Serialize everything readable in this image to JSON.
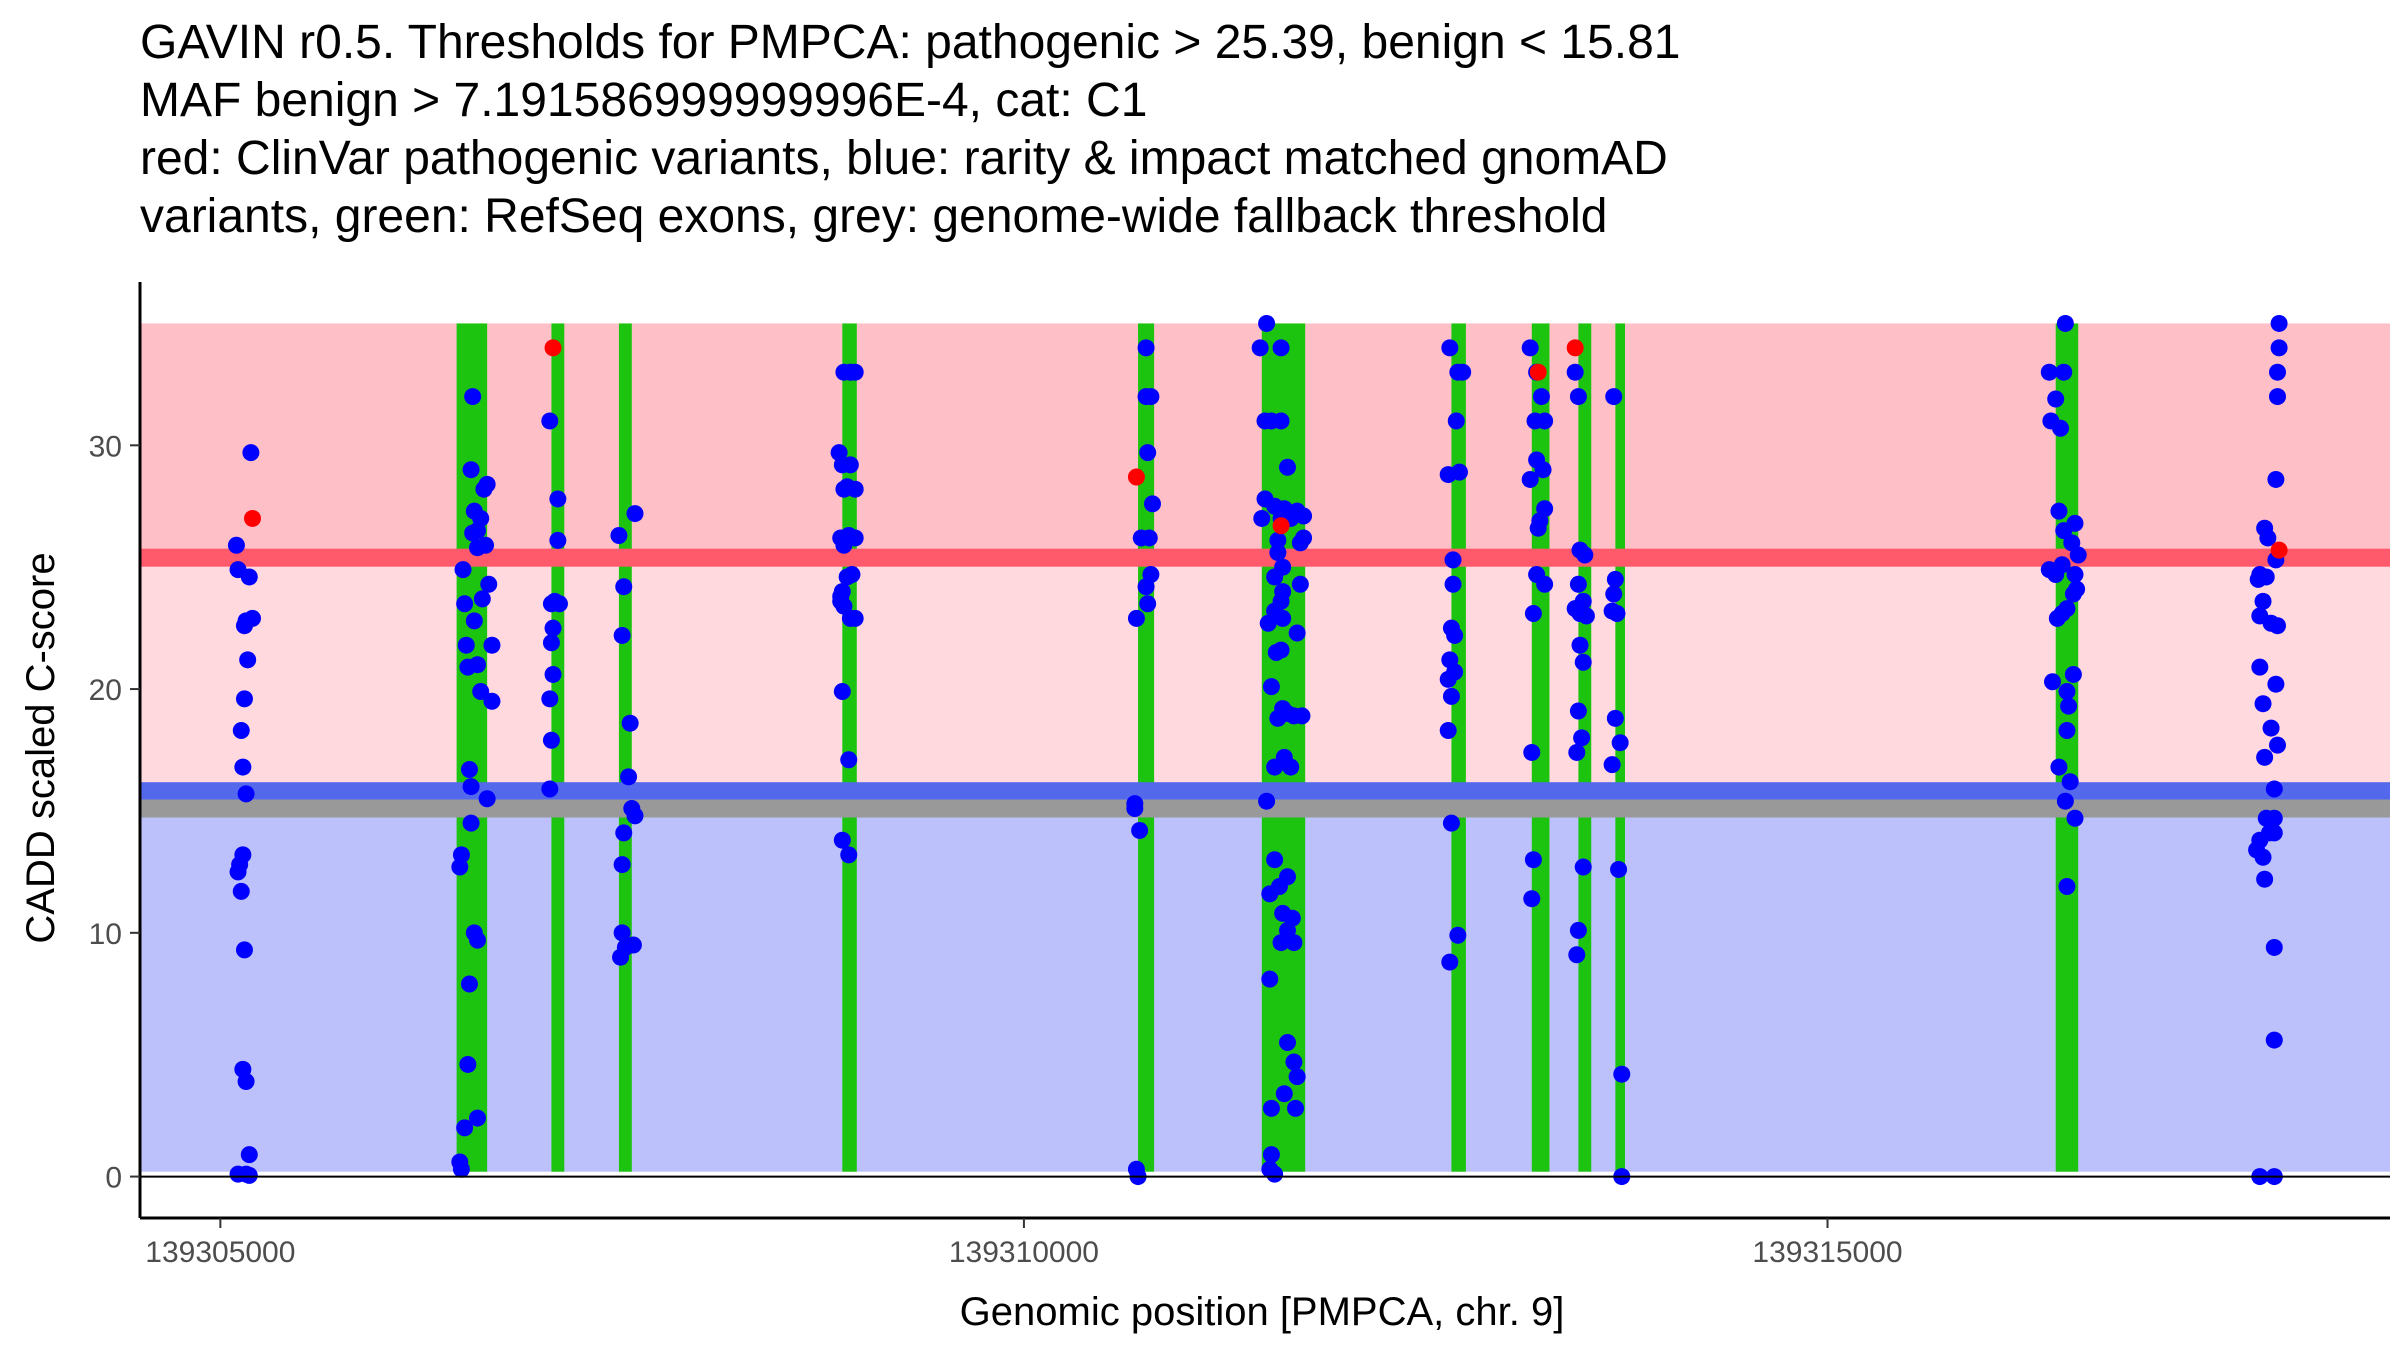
{
  "title_lines": [
    "GAVIN r0.5. Thresholds for PMPCA: pathogenic > 25.39, benign < 15.81",
    "MAF benign > 7.191586999999996E-4, cat: C1",
    "red: ClinVar pathogenic variants, blue: rarity & impact matched gnomAD",
    "variants, green: RefSeq exons, grey: genome-wide fallback threshold"
  ],
  "chart_data": {
    "type": "scatter",
    "title": "GAVIN r0.5. Thresholds for PMPCA: pathogenic > 25.39, benign < 15.81",
    "xlabel": "Genomic position [PMPCA, chr. 9]",
    "ylabel": "CADD scaled C-score",
    "xlim": [
      139304500,
      139318500
    ],
    "ylim": [
      -1.7,
      36.7
    ],
    "x_ticks": [
      139305000,
      139310000,
      139315000
    ],
    "x_tick_labels": [
      "139305000",
      "139310000",
      "139315000"
    ],
    "y_ticks": [
      0,
      10,
      20,
      30
    ],
    "y_tick_labels": [
      "0",
      "10",
      "20",
      "30"
    ],
    "grid": false,
    "colors": {
      "pathogenic_zone": "#ffbfc7",
      "uncertain_zone": "#ffd9de",
      "benign_zone": "#bcc1fb",
      "pathogenic_line": "#ff5a6b",
      "benign_line": "#5468ec",
      "fallback_line": "#999999",
      "exon": "#1cc40f",
      "gnomad_point": "#0000ff",
      "clinvar_point": "#ff0000"
    },
    "thresholds": {
      "pathogenic": 25.39,
      "benign": 15.81,
      "fallback": 15.1,
      "zone_top": 35,
      "zone_bottom": 0.2
    },
    "exons": [
      [
        139306470,
        139306660
      ],
      [
        139307060,
        139307140
      ],
      [
        139307480,
        139307560
      ],
      [
        139308870,
        139308960
      ],
      [
        139310710,
        139310810
      ],
      [
        139311480,
        139311750
      ],
      [
        139312660,
        139312750
      ],
      [
        139313160,
        139313270
      ],
      [
        139313450,
        139313530
      ],
      [
        139313680,
        139313740
      ],
      [
        139316420,
        139316560
      ]
    ],
    "gnomad_variants": [
      [
        139305100,
        25.9
      ],
      [
        139305110,
        24.9
      ],
      [
        139305150,
        22.6
      ],
      [
        139305160,
        22.8
      ],
      [
        139305170,
        21.2
      ],
      [
        139305150,
        19.6
      ],
      [
        139305130,
        18.3
      ],
      [
        139305140,
        16.8
      ],
      [
        139305160,
        15.7
      ],
      [
        139305140,
        13.2
      ],
      [
        139305120,
        12.8
      ],
      [
        139305110,
        12.5
      ],
      [
        139305130,
        11.7
      ],
      [
        139305150,
        9.3
      ],
      [
        139305140,
        4.4
      ],
      [
        139305160,
        3.9
      ],
      [
        139305180,
        0.9
      ],
      [
        139305110,
        0.1
      ],
      [
        139305160,
        0.1
      ],
      [
        139305180,
        24.6
      ],
      [
        139305190,
        29.7
      ],
      [
        139305200,
        22.9
      ],
      [
        139305180,
        0.05
      ],
      [
        139306510,
        24.9
      ],
      [
        139306520,
        23.5
      ],
      [
        139306530,
        21.8
      ],
      [
        139306540,
        20.9
      ],
      [
        139306550,
        16.7
      ],
      [
        139306560,
        16.0
      ],
      [
        139306500,
        13.2
      ],
      [
        139306490,
        12.7
      ],
      [
        139306560,
        14.5
      ],
      [
        139306580,
        10.0
      ],
      [
        139306600,
        9.7
      ],
      [
        139306550,
        7.9
      ],
      [
        139306540,
        4.6
      ],
      [
        139306520,
        2.0
      ],
      [
        139306600,
        2.4
      ],
      [
        139306490,
        0.6
      ],
      [
        139306500,
        0.3
      ],
      [
        139306570,
        32.0
      ],
      [
        139306560,
        29.0
      ],
      [
        139306580,
        27.3
      ],
      [
        139306600,
        26.5
      ],
      [
        139306620,
        27.0
      ],
      [
        139306570,
        26.4
      ],
      [
        139306640,
        28.2
      ],
      [
        139306660,
        28.4
      ],
      [
        139306600,
        25.8
      ],
      [
        139306650,
        25.9
      ],
      [
        139306630,
        23.7
      ],
      [
        139306580,
        22.8
      ],
      [
        139306600,
        21.0
      ],
      [
        139306620,
        19.9
      ],
      [
        139306670,
        24.3
      ],
      [
        139306690,
        21.8
      ],
      [
        139306690,
        19.5
      ],
      [
        139306660,
        15.5
      ],
      [
        139307050,
        31.0
      ],
      [
        139307060,
        23.5
      ],
      [
        139307080,
        23.6
      ],
      [
        139307110,
        23.5
      ],
      [
        139307070,
        22.5
      ],
      [
        139307060,
        21.9
      ],
      [
        139307050,
        19.6
      ],
      [
        139307070,
        20.6
      ],
      [
        139307060,
        17.9
      ],
      [
        139307050,
        15.9
      ],
      [
        139307100,
        27.8
      ],
      [
        139307100,
        26.1
      ],
      [
        139307480,
        26.3
      ],
      [
        139307510,
        24.2
      ],
      [
        139307500,
        22.2
      ],
      [
        139307510,
        14.1
      ],
      [
        139307500,
        12.8
      ],
      [
        139307500,
        10.0
      ],
      [
        139307490,
        9.0
      ],
      [
        139307520,
        9.4
      ],
      [
        139307540,
        16.4
      ],
      [
        139307550,
        18.6
      ],
      [
        139307560,
        15.1
      ],
      [
        139307580,
        14.8
      ],
      [
        139307570,
        9.5
      ],
      [
        139307580,
        27.2
      ],
      [
        139308850,
        29.7
      ],
      [
        139308870,
        29.2
      ],
      [
        139308880,
        28.2
      ],
      [
        139308900,
        28.3
      ],
      [
        139308950,
        28.2
      ],
      [
        139308920,
        29.2
      ],
      [
        139308860,
        26.2
      ],
      [
        139308880,
        25.9
      ],
      [
        139308910,
        26.3
      ],
      [
        139308950,
        26.2
      ],
      [
        139308870,
        24.0
      ],
      [
        139308900,
        24.6
      ],
      [
        139308930,
        24.7
      ],
      [
        139308880,
        23.4
      ],
      [
        139308920,
        22.9
      ],
      [
        139308860,
        23.8
      ],
      [
        139308950,
        22.9
      ],
      [
        139308870,
        19.9
      ],
      [
        139308910,
        17.1
      ],
      [
        139308870,
        13.8
      ],
      [
        139308910,
        13.2
      ],
      [
        139308880,
        33.0
      ],
      [
        139308920,
        33.0
      ],
      [
        139308950,
        33.0
      ],
      [
        139308860,
        23.6
      ],
      [
        139310690,
        15.3
      ],
      [
        139310690,
        15.1
      ],
      [
        139310720,
        14.2
      ],
      [
        139310700,
        22.9
      ],
      [
        139310730,
        26.2
      ],
      [
        139310780,
        26.2
      ],
      [
        139310760,
        24.2
      ],
      [
        139310790,
        24.7
      ],
      [
        139310770,
        23.5
      ],
      [
        139310800,
        27.6
      ],
      [
        139310770,
        29.7
      ],
      [
        139310760,
        32.0
      ],
      [
        139310790,
        32.0
      ],
      [
        139310760,
        34.0
      ],
      [
        139310700,
        0.3
      ],
      [
        139310710,
        0.0
      ],
      [
        139311470,
        34.0
      ],
      [
        139311510,
        35.0
      ],
      [
        139311500,
        31.0
      ],
      [
        139311540,
        31.0
      ],
      [
        139311600,
        31.0
      ],
      [
        139311500,
        27.8
      ],
      [
        139311560,
        27.5
      ],
      [
        139311600,
        27.0
      ],
      [
        139311620,
        27.4
      ],
      [
        139311660,
        27.0
      ],
      [
        139311700,
        27.3
      ],
      [
        139311740,
        27.1
      ],
      [
        139311480,
        27.0
      ],
      [
        139311580,
        26.1
      ],
      [
        139311720,
        26.0
      ],
      [
        139311740,
        26.2
      ],
      [
        139311580,
        25.6
      ],
      [
        139311610,
        25.0
      ],
      [
        139311560,
        24.6
      ],
      [
        139311610,
        24.0
      ],
      [
        139311720,
        24.3
      ],
      [
        139311560,
        23.2
      ],
      [
        139311600,
        23.6
      ],
      [
        139311610,
        22.9
      ],
      [
        139311520,
        22.7
      ],
      [
        139311700,
        22.3
      ],
      [
        139311640,
        29.1
      ],
      [
        139311570,
        21.5
      ],
      [
        139311600,
        21.6
      ],
      [
        139311540,
        20.1
      ],
      [
        139311610,
        19.2
      ],
      [
        139311640,
        19.0
      ],
      [
        139311680,
        18.9
      ],
      [
        139311730,
        18.9
      ],
      [
        139311580,
        18.8
      ],
      [
        139311620,
        17.2
      ],
      [
        139311560,
        16.8
      ],
      [
        139311660,
        16.8
      ],
      [
        139311510,
        15.4
      ],
      [
        139311560,
        13.0
      ],
      [
        139311590,
        11.9
      ],
      [
        139311530,
        11.6
      ],
      [
        139311640,
        12.3
      ],
      [
        139311610,
        10.8
      ],
      [
        139311640,
        10.1
      ],
      [
        139311670,
        10.6
      ],
      [
        139311600,
        9.6
      ],
      [
        139311680,
        9.6
      ],
      [
        139311530,
        8.1
      ],
      [
        139311640,
        5.5
      ],
      [
        139311680,
        4.7
      ],
      [
        139311700,
        4.1
      ],
      [
        139311620,
        3.4
      ],
      [
        139311540,
        2.8
      ],
      [
        139311690,
        2.8
      ],
      [
        139311540,
        0.9
      ],
      [
        139311560,
        0.1
      ],
      [
        139311530,
        0.3
      ],
      [
        139311600,
        34.0
      ],
      [
        139312650,
        34.0
      ],
      [
        139312700,
        33.0
      ],
      [
        139312730,
        33.0
      ],
      [
        139312690,
        31.0
      ],
      [
        139312640,
        28.8
      ],
      [
        139312710,
        28.9
      ],
      [
        139312670,
        25.3
      ],
      [
        139312670,
        24.3
      ],
      [
        139312660,
        22.5
      ],
      [
        139312680,
        22.2
      ],
      [
        139312650,
        21.2
      ],
      [
        139312640,
        20.4
      ],
      [
        139312680,
        20.7
      ],
      [
        139312660,
        19.7
      ],
      [
        139312640,
        18.3
      ],
      [
        139312660,
        14.5
      ],
      [
        139312700,
        9.9
      ],
      [
        139312650,
        8.8
      ],
      [
        139313150,
        34.0
      ],
      [
        139313190,
        33.0
      ],
      [
        139313220,
        32.0
      ],
      [
        139313180,
        31.0
      ],
      [
        139313240,
        31.0
      ],
      [
        139313150,
        28.6
      ],
      [
        139313190,
        29.4
      ],
      [
        139313230,
        29.0
      ],
      [
        139313240,
        27.4
      ],
      [
        139313210,
        26.9
      ],
      [
        139313200,
        26.6
      ],
      [
        139313190,
        24.7
      ],
      [
        139313240,
        24.3
      ],
      [
        139313170,
        23.1
      ],
      [
        139313160,
        17.4
      ],
      [
        139313170,
        13.0
      ],
      [
        139313160,
        11.4
      ],
      [
        139313430,
        33.0
      ],
      [
        139313450,
        32.0
      ],
      [
        139313460,
        25.7
      ],
      [
        139313490,
        25.5
      ],
      [
        139313450,
        24.3
      ],
      [
        139313430,
        23.3
      ],
      [
        139313480,
        23.6
      ],
      [
        139313460,
        23.1
      ],
      [
        139313500,
        23.0
      ],
      [
        139313460,
        21.8
      ],
      [
        139313480,
        21.1
      ],
      [
        139313450,
        19.1
      ],
      [
        139313470,
        18.0
      ],
      [
        139313440,
        17.4
      ],
      [
        139313480,
        12.7
      ],
      [
        139313450,
        10.1
      ],
      [
        139313440,
        9.1
      ],
      [
        139313670,
        32.0
      ],
      [
        139313680,
        24.5
      ],
      [
        139313670,
        23.9
      ],
      [
        139313660,
        23.2
      ],
      [
        139313690,
        23.1
      ],
      [
        139313680,
        18.8
      ],
      [
        139313710,
        17.8
      ],
      [
        139313660,
        16.9
      ],
      [
        139313700,
        12.6
      ],
      [
        139313720,
        4.2
      ],
      [
        139313720,
        0.0
      ],
      [
        139316380,
        33.0
      ],
      [
        139316390,
        31.0
      ],
      [
        139316420,
        31.9
      ],
      [
        139316470,
        33.0
      ],
      [
        139316480,
        35.0
      ],
      [
        139316450,
        30.7
      ],
      [
        139316440,
        27.3
      ],
      [
        139316470,
        26.5
      ],
      [
        139316540,
        26.8
      ],
      [
        139316520,
        26.0
      ],
      [
        139316560,
        25.5
      ],
      [
        139316380,
        24.9
      ],
      [
        139316420,
        24.7
      ],
      [
        139316460,
        25.1
      ],
      [
        139316540,
        24.7
      ],
      [
        139316530,
        23.9
      ],
      [
        139316550,
        24.1
      ],
      [
        139316430,
        22.9
      ],
      [
        139316490,
        23.3
      ],
      [
        139316460,
        23.1
      ],
      [
        139316400,
        20.3
      ],
      [
        139316490,
        19.9
      ],
      [
        139316530,
        20.6
      ],
      [
        139316500,
        19.3
      ],
      [
        139316490,
        18.3
      ],
      [
        139316440,
        16.8
      ],
      [
        139316510,
        16.2
      ],
      [
        139316480,
        15.4
      ],
      [
        139316540,
        14.7
      ],
      [
        139316490,
        11.9
      ],
      [
        139317680,
        24.5
      ],
      [
        139317690,
        24.7
      ],
      [
        139317730,
        24.6
      ],
      [
        139317710,
        23.6
      ],
      [
        139317690,
        23.0
      ],
      [
        139317760,
        22.7
      ],
      [
        139317800,
        22.6
      ],
      [
        139317690,
        20.9
      ],
      [
        139317790,
        20.2
      ],
      [
        139317710,
        19.4
      ],
      [
        139317760,
        18.4
      ],
      [
        139317720,
        17.2
      ],
      [
        139317800,
        17.7
      ],
      [
        139317780,
        15.9
      ],
      [
        139317730,
        14.7
      ],
      [
        139317780,
        14.7
      ],
      [
        139317690,
        13.8
      ],
      [
        139317670,
        13.4
      ],
      [
        139317710,
        13.1
      ],
      [
        139317720,
        12.2
      ],
      [
        139317750,
        14.1
      ],
      [
        139317780,
        14.1
      ],
      [
        139317780,
        9.4
      ],
      [
        139317780,
        5.6
      ],
      [
        139317790,
        28.6
      ],
      [
        139317800,
        32.0
      ],
      [
        139317800,
        33.0
      ],
      [
        139317810,
        34.0
      ],
      [
        139317810,
        35.0
      ],
      [
        139317690,
        0.0
      ],
      [
        139317780,
        0.0
      ],
      [
        139317720,
        26.6
      ],
      [
        139317740,
        26.2
      ],
      [
        139317790,
        25.3
      ]
    ],
    "clinvar_variants": [
      [
        139305200,
        27.0
      ],
      [
        139307070,
        34.0
      ],
      [
        139310700,
        28.7
      ],
      [
        139311600,
        26.7
      ],
      [
        139313200,
        33.0
      ],
      [
        139313430,
        34.0
      ],
      [
        139317810,
        25.7
      ]
    ]
  }
}
